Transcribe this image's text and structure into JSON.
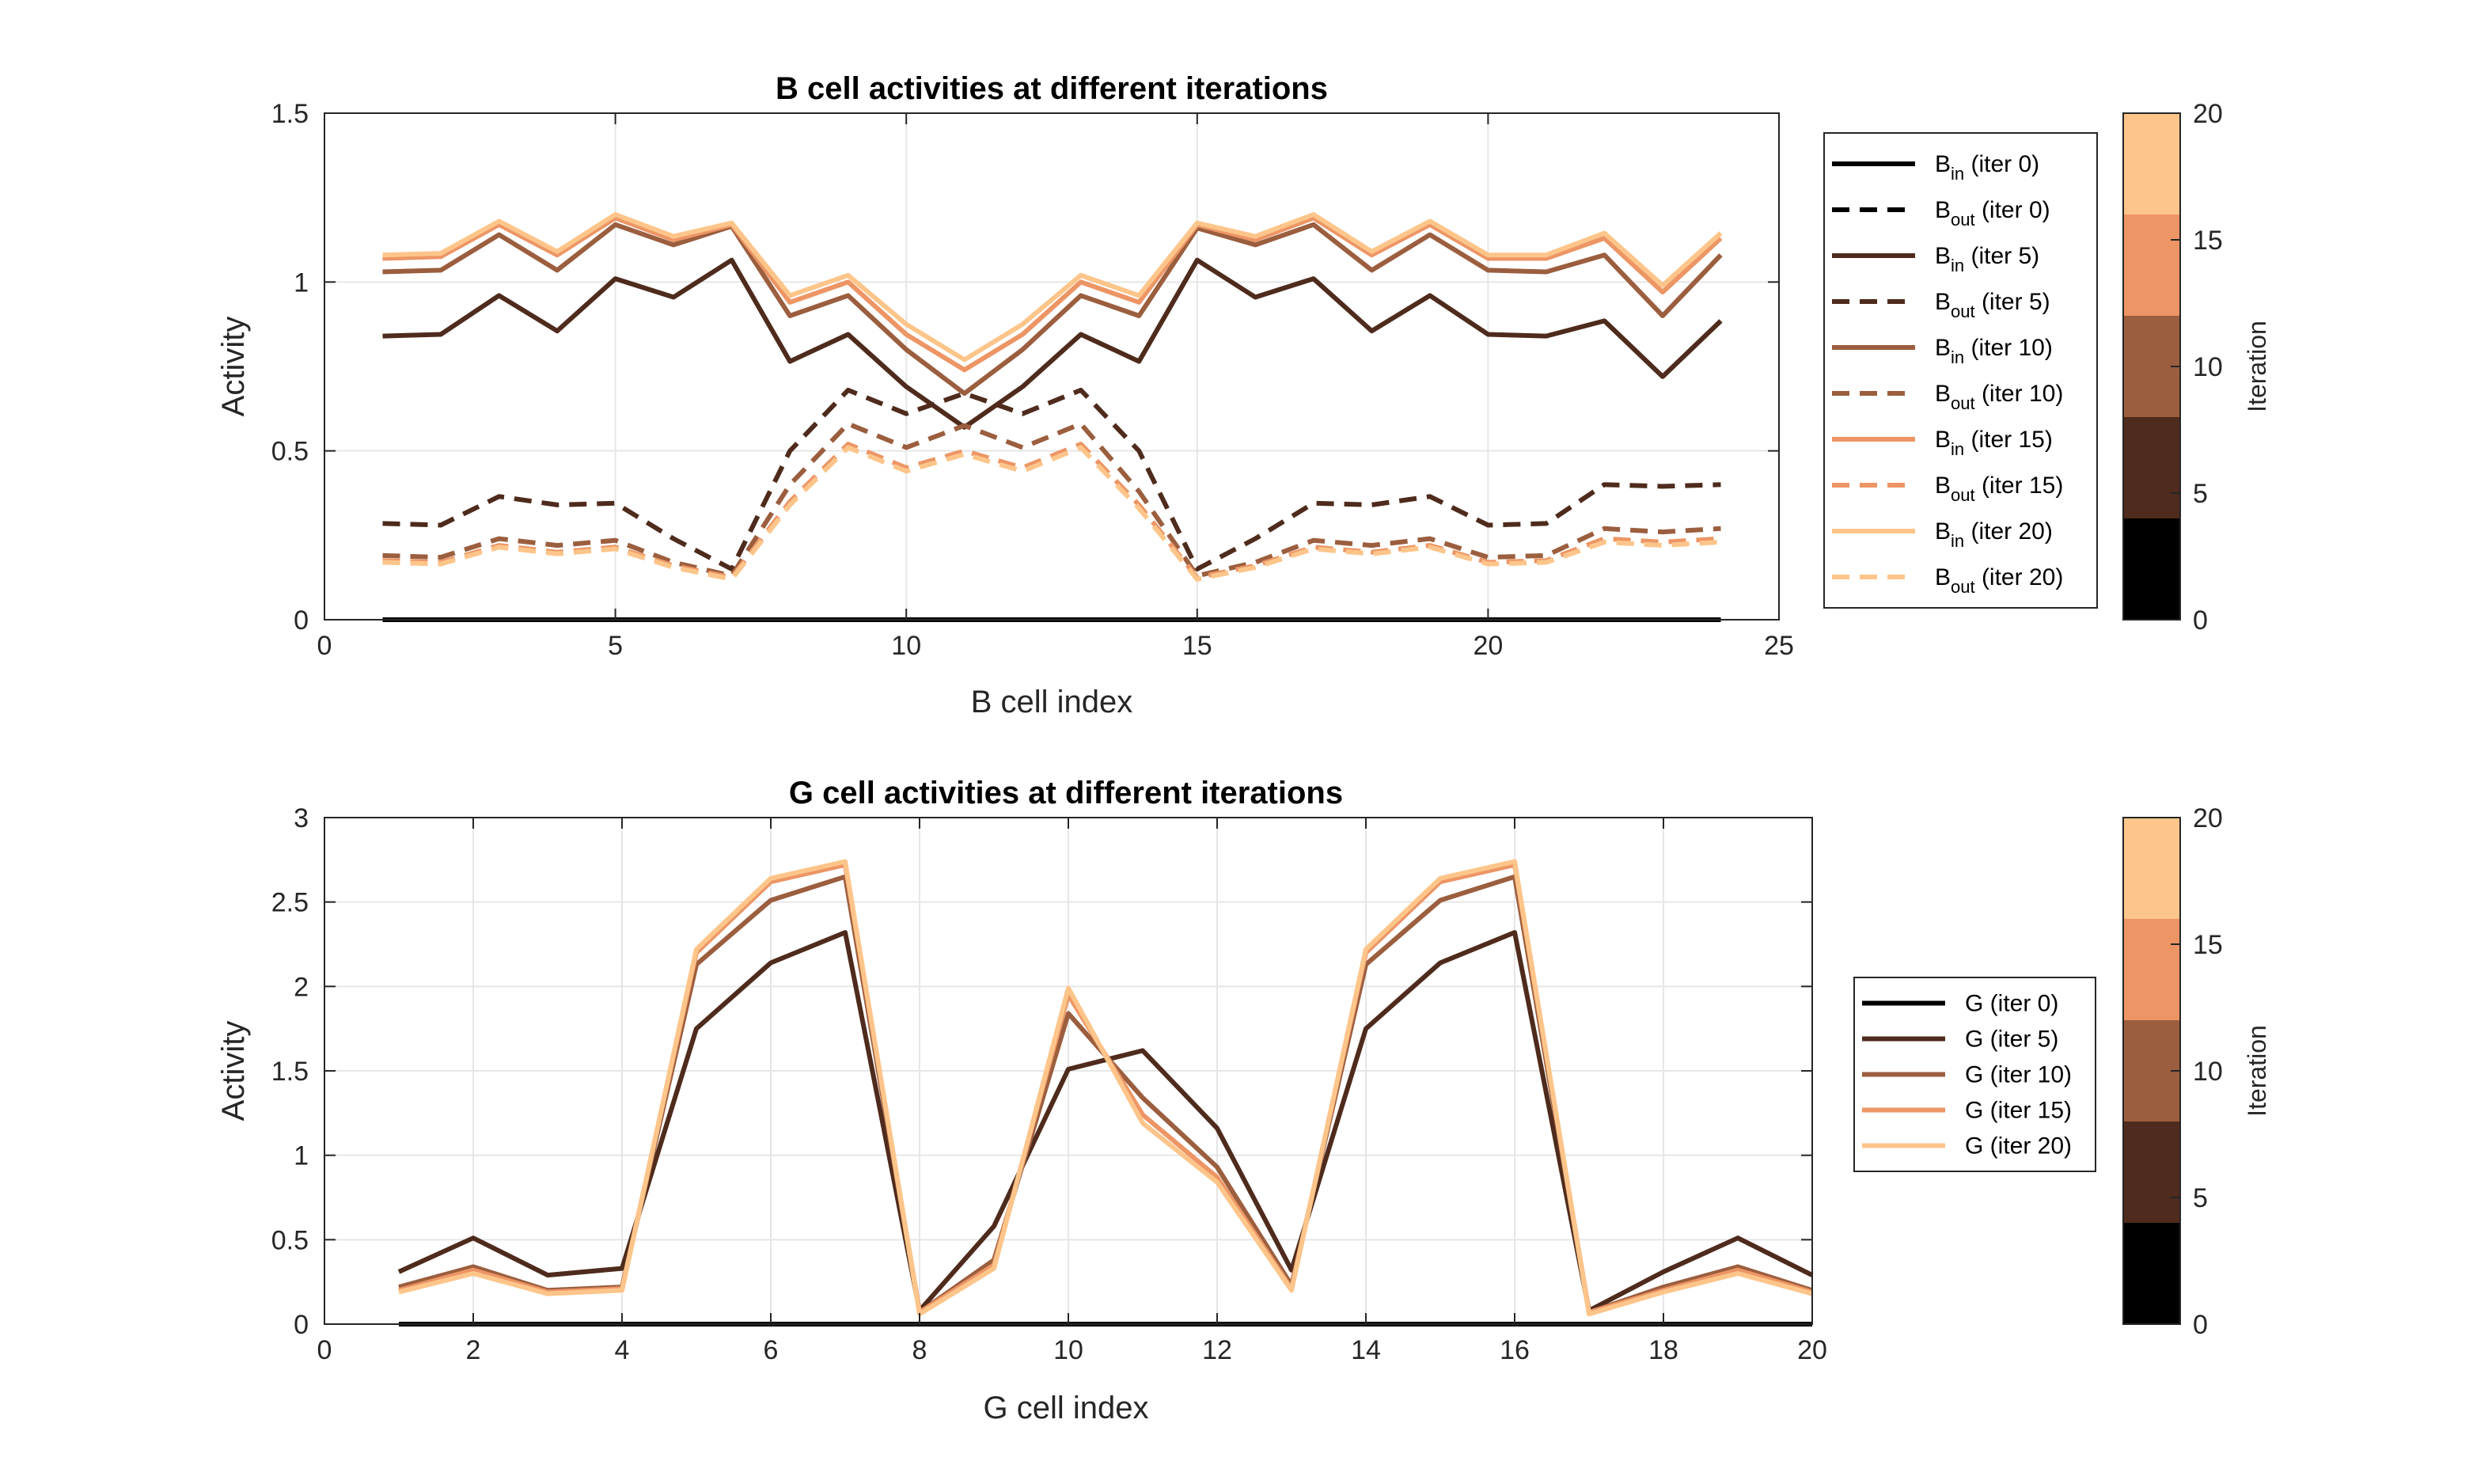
{
  "colors": {
    "iter0": "#000000",
    "iter5": "#4e2b1c",
    "iter10": "#9b5e3e",
    "iter15": "#ed9565",
    "iter20": "#fdc58a",
    "grid": "#e6e6e6",
    "axis": "#262626"
  },
  "chart_data": [
    {
      "type": "line",
      "title": "B cell activities at different iterations",
      "xlabel": "B cell index",
      "ylabel": "Activity",
      "xlim": [
        0,
        25
      ],
      "ylim": [
        0,
        1.5
      ],
      "xticks": [
        "0",
        "5",
        "10",
        "15",
        "20",
        "25"
      ],
      "yticks": [
        "0",
        "0.5",
        "1",
        "1.5"
      ],
      "grid": true,
      "legend_position": "right",
      "x": [
        1,
        2,
        3,
        4,
        5,
        6,
        7,
        8,
        9,
        10,
        11,
        12,
        13,
        14,
        15,
        16,
        17,
        18,
        19,
        20,
        21,
        22,
        23,
        24
      ],
      "series": [
        {
          "legend_main": "B",
          "legend_sub": "in",
          "legend_tail": " (iter 0)",
          "color_key": "iter0",
          "dash": false,
          "values": [
            0,
            0,
            0,
            0,
            0,
            0,
            0,
            0,
            0,
            0,
            0,
            0,
            0,
            0,
            0,
            0,
            0,
            0,
            0,
            0,
            0,
            0,
            0,
            0
          ]
        },
        {
          "legend_main": "B",
          "legend_sub": "out",
          "legend_tail": " (iter 0)",
          "color_key": "iter0",
          "dash": true,
          "values": [
            0,
            0,
            0,
            0,
            0,
            0,
            0,
            0,
            0,
            0,
            0,
            0,
            0,
            0,
            0,
            0,
            0,
            0,
            0,
            0,
            0,
            0,
            0,
            0
          ]
        },
        {
          "legend_main": "B",
          "legend_sub": "in",
          "legend_tail": " (iter 5)",
          "color_key": "iter5",
          "dash": false,
          "values": [
            0.84,
            0.845,
            0.96,
            0.855,
            1.01,
            0.955,
            1.065,
            0.765,
            0.845,
            0.69,
            0.57,
            0.69,
            0.845,
            0.765,
            1.065,
            0.955,
            1.01,
            0.855,
            0.96,
            0.845,
            0.84,
            0.885,
            0.72,
            0.885
          ]
        },
        {
          "legend_main": "B",
          "legend_sub": "out",
          "legend_tail": " (iter 5)",
          "color_key": "iter5",
          "dash": true,
          "values": [
            0.285,
            0.28,
            0.365,
            0.34,
            0.345,
            0.24,
            0.15,
            0.5,
            0.68,
            0.61,
            0.67,
            0.61,
            0.68,
            0.5,
            0.15,
            0.24,
            0.345,
            0.34,
            0.365,
            0.28,
            0.285,
            0.4,
            0.395,
            0.4
          ]
        },
        {
          "legend_main": "B",
          "legend_sub": "in",
          "legend_tail": " (iter 10)",
          "color_key": "iter10",
          "dash": false,
          "values": [
            1.03,
            1.035,
            1.14,
            1.035,
            1.17,
            1.11,
            1.165,
            0.9,
            0.96,
            0.8,
            0.67,
            0.8,
            0.96,
            0.9,
            1.16,
            1.11,
            1.17,
            1.035,
            1.14,
            1.035,
            1.03,
            1.08,
            0.9,
            1.08
          ]
        },
        {
          "legend_main": "B",
          "legend_sub": "out",
          "legend_tail": " (iter 10)",
          "color_key": "iter10",
          "dash": true,
          "values": [
            0.19,
            0.185,
            0.24,
            0.22,
            0.235,
            0.17,
            0.13,
            0.4,
            0.58,
            0.51,
            0.575,
            0.51,
            0.58,
            0.38,
            0.13,
            0.17,
            0.235,
            0.22,
            0.24,
            0.185,
            0.19,
            0.27,
            0.26,
            0.27
          ]
        },
        {
          "legend_main": "B",
          "legend_sub": "in",
          "legend_tail": " (iter 15)",
          "color_key": "iter15",
          "dash": false,
          "values": [
            1.07,
            1.075,
            1.17,
            1.08,
            1.19,
            1.125,
            1.17,
            0.94,
            1.0,
            0.845,
            0.74,
            0.845,
            1.0,
            0.94,
            1.17,
            1.125,
            1.19,
            1.08,
            1.17,
            1.07,
            1.07,
            1.13,
            0.97,
            1.13
          ]
        },
        {
          "legend_main": "B",
          "legend_sub": "out",
          "legend_tail": " (iter 15)",
          "color_key": "iter15",
          "dash": true,
          "values": [
            0.175,
            0.17,
            0.22,
            0.2,
            0.215,
            0.16,
            0.125,
            0.35,
            0.52,
            0.45,
            0.5,
            0.45,
            0.52,
            0.34,
            0.125,
            0.16,
            0.215,
            0.2,
            0.22,
            0.17,
            0.175,
            0.24,
            0.23,
            0.24
          ]
        },
        {
          "legend_main": "B",
          "legend_sub": "in",
          "legend_tail": " (iter 20)",
          "color_key": "iter20",
          "dash": false,
          "values": [
            1.08,
            1.085,
            1.18,
            1.09,
            1.2,
            1.135,
            1.175,
            0.96,
            1.02,
            0.875,
            0.77,
            0.875,
            1.02,
            0.96,
            1.175,
            1.135,
            1.2,
            1.09,
            1.18,
            1.08,
            1.08,
            1.145,
            0.99,
            1.145
          ]
        },
        {
          "legend_main": "B",
          "legend_sub": "out",
          "legend_tail": " (iter 20)",
          "color_key": "iter20",
          "dash": true,
          "values": [
            0.17,
            0.165,
            0.215,
            0.195,
            0.21,
            0.155,
            0.12,
            0.34,
            0.51,
            0.44,
            0.49,
            0.44,
            0.51,
            0.33,
            0.12,
            0.155,
            0.21,
            0.195,
            0.215,
            0.165,
            0.17,
            0.23,
            0.22,
            0.23
          ]
        }
      ],
      "colorbar": {
        "label": "Iteration",
        "ticks": [
          "0",
          "5",
          "10",
          "15",
          "20"
        ],
        "range": [
          0,
          20
        ]
      }
    },
    {
      "type": "line",
      "title": "G cell activities at different iterations",
      "xlabel": "G cell index",
      "ylabel": "Activity",
      "xlim": [
        0,
        20
      ],
      "ylim": [
        0,
        3
      ],
      "xticks": [
        "0",
        "2",
        "4",
        "6",
        "8",
        "10",
        "12",
        "14",
        "16",
        "18",
        "20"
      ],
      "yticks": [
        "0",
        "0.5",
        "1",
        "1.5",
        "2",
        "2.5",
        "3"
      ],
      "grid": true,
      "legend_position": "right",
      "x": [
        1,
        2,
        3,
        4,
        5,
        6,
        7,
        8,
        9,
        10,
        11,
        12,
        13,
        14,
        15,
        16,
        17,
        18,
        19,
        20
      ],
      "series": [
        {
          "legend_main": "G (iter 0)",
          "legend_sub": "",
          "legend_tail": "",
          "color_key": "iter0",
          "dash": false,
          "values": [
            0,
            0,
            0,
            0,
            0,
            0,
            0,
            0,
            0,
            0,
            0,
            0,
            0,
            0,
            0,
            0,
            0,
            0,
            0,
            0
          ]
        },
        {
          "legend_main": "G (iter 5)",
          "legend_sub": "",
          "legend_tail": "",
          "color_key": "iter5",
          "dash": false,
          "values": [
            0.31,
            0.51,
            0.29,
            0.33,
            1.75,
            2.14,
            2.32,
            0.08,
            0.58,
            1.51,
            1.62,
            1.16,
            0.32,
            1.75,
            2.14,
            2.32,
            0.08,
            0.31,
            0.51,
            0.29
          ]
        },
        {
          "legend_main": "G (iter 10)",
          "legend_sub": "",
          "legend_tail": "",
          "color_key": "iter10",
          "dash": false,
          "values": [
            0.22,
            0.34,
            0.2,
            0.22,
            2.13,
            2.51,
            2.65,
            0.07,
            0.38,
            1.84,
            1.34,
            0.93,
            0.23,
            2.13,
            2.51,
            2.65,
            0.07,
            0.22,
            0.34,
            0.2
          ]
        },
        {
          "legend_main": "G (iter 15)",
          "legend_sub": "",
          "legend_tail": "",
          "color_key": "iter15",
          "dash": false,
          "values": [
            0.2,
            0.32,
            0.19,
            0.21,
            2.2,
            2.62,
            2.72,
            0.07,
            0.35,
            1.95,
            1.24,
            0.87,
            0.21,
            2.2,
            2.62,
            2.72,
            0.07,
            0.2,
            0.32,
            0.19
          ]
        },
        {
          "legend_main": "G (iter 20)",
          "legend_sub": "",
          "legend_tail": "",
          "color_key": "iter20",
          "dash": false,
          "values": [
            0.19,
            0.3,
            0.18,
            0.2,
            2.22,
            2.64,
            2.74,
            0.06,
            0.33,
            1.99,
            1.19,
            0.84,
            0.2,
            2.22,
            2.64,
            2.74,
            0.06,
            0.19,
            0.3,
            0.18
          ]
        }
      ],
      "colorbar": {
        "label": "Iteration",
        "ticks": [
          "0",
          "5",
          "10",
          "15",
          "20"
        ],
        "range": [
          0,
          20
        ]
      }
    }
  ]
}
